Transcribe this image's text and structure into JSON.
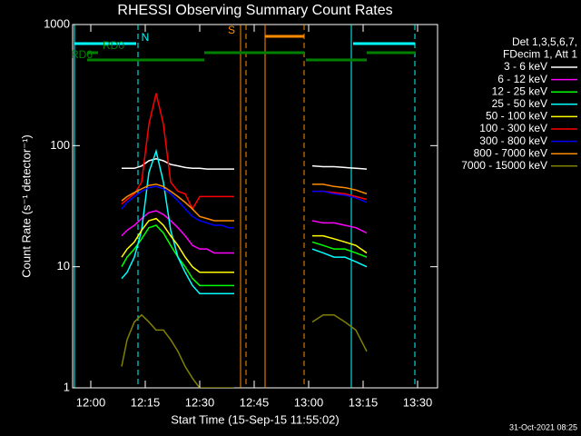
{
  "chart_data": {
    "type": "line",
    "title": "RHESSI Observing Summary Count Rates",
    "y_label": "Count Rate (s⁻¹ detector⁻¹)",
    "x_label": "Start Time (15-Sep-15 11:55:02)",
    "timestamp": "31-Oct-2021 08:25",
    "legend_header": [
      "Det 1,3,5,6,7,",
      "FDecim 1, Att 1"
    ],
    "log_y": true,
    "ylim": [
      1,
      1000
    ],
    "yticks": [
      1,
      10,
      100,
      1000
    ],
    "xlim": [
      -5,
      95.5
    ],
    "xticks": [
      {
        "value": 0,
        "label": "12:00"
      },
      {
        "value": 15,
        "label": "12:15"
      },
      {
        "value": 30,
        "label": "12:30"
      },
      {
        "value": 45,
        "label": "12:45"
      },
      {
        "value": 60,
        "label": "13:00"
      },
      {
        "value": 75,
        "label": "13:15"
      },
      {
        "value": 90,
        "label": "13:30"
      }
    ],
    "x": [
      8.5,
      10,
      12,
      14,
      16,
      18,
      20,
      22,
      24,
      26,
      28,
      30,
      32,
      34,
      36,
      38,
      39.5,
      50,
      61,
      64,
      67,
      70,
      73,
      76
    ],
    "series": [
      {
        "name": "3 - 6 keV",
        "color": "#ffffff",
        "values": [
          65,
          65,
          65,
          68,
          75,
          78,
          75,
          70,
          68,
          66,
          65,
          65,
          64,
          64,
          64,
          64,
          64,
          null,
          68,
          67,
          67,
          66,
          65,
          64
        ]
      },
      {
        "name": "6 - 12 keV",
        "color": "#ff00ff",
        "values": [
          18,
          20,
          22,
          25,
          28,
          29,
          27,
          24,
          21,
          18,
          15,
          14,
          14,
          13,
          13,
          13,
          13,
          null,
          24,
          23,
          23,
          22,
          21,
          19
        ]
      },
      {
        "name": "12 - 25 keV",
        "color": "#00ff00",
        "values": [
          10,
          12,
          14,
          17,
          21,
          22,
          19,
          15,
          12,
          10,
          8,
          7,
          7,
          7,
          7,
          7,
          7,
          null,
          16,
          15,
          14,
          14,
          13,
          12
        ]
      },
      {
        "name": "25 - 50 keV",
        "color": "#00ffff",
        "values": [
          8,
          9,
          12,
          20,
          60,
          90,
          50,
          20,
          12,
          9,
          7,
          6,
          6,
          6,
          6,
          6,
          6,
          null,
          14,
          13,
          12,
          12,
          11,
          10
        ]
      },
      {
        "name": "50 - 100 keV",
        "color": "#ffff00",
        "values": [
          12,
          14,
          16,
          20,
          24,
          25,
          22,
          18,
          15,
          12,
          10,
          9,
          9,
          9,
          9,
          9,
          9,
          null,
          18,
          18,
          17,
          16,
          15,
          13
        ]
      },
      {
        "name": "100 - 300 keV",
        "color": "#ff0000",
        "values": [
          33,
          36,
          40,
          50,
          150,
          270,
          150,
          50,
          42,
          40,
          30,
          38,
          38,
          38,
          38,
          38,
          38,
          null,
          42,
          42,
          41,
          40,
          38,
          36
        ]
      },
      {
        "name": "300 - 800 keV",
        "color": "#0000ff",
        "values": [
          30,
          34,
          38,
          42,
          45,
          46,
          44,
          40,
          35,
          30,
          26,
          24,
          23,
          22,
          22,
          21,
          21,
          null,
          42,
          42,
          40,
          39,
          37,
          34
        ]
      },
      {
        "name": "800 - 7000 keV",
        "color": "#ff8c00",
        "values": [
          35,
          38,
          41,
          44,
          47,
          48,
          46,
          42,
          38,
          34,
          30,
          26,
          25,
          24,
          24,
          24,
          24,
          null,
          48,
          48,
          46,
          45,
          43,
          40
        ]
      },
      {
        "name": "7000 - 15000 keV",
        "color": "#808000",
        "values": [
          1.5,
          2.5,
          3.5,
          4,
          3.5,
          3,
          3,
          2.5,
          2,
          1.5,
          1.2,
          1,
          1,
          1,
          1,
          1,
          1,
          null,
          3.5,
          4,
          4,
          3.5,
          3,
          2
        ]
      }
    ],
    "events": [
      {
        "x": -4.5,
        "color": "#00ffff",
        "style": "solid"
      },
      {
        "x": 13,
        "color": "#00ffff",
        "style": "dashed"
      },
      {
        "x": 41.25,
        "color": "#ff8c00",
        "style": "solid"
      },
      {
        "x": 42.75,
        "color": "#ff8c00",
        "style": "dashed"
      },
      {
        "x": 48,
        "color": "#ff8c00",
        "style": "solid"
      },
      {
        "x": 58.75,
        "color": "#ff8c00",
        "style": "dashed"
      },
      {
        "x": 71.75,
        "color": "#00ffff",
        "style": "solid"
      },
      {
        "x": 89.25,
        "color": "#00ffff",
        "style": "dashed"
      }
    ],
    "flags": [
      {
        "name": "N",
        "color": "#00ffff",
        "segments": [
          [
            -4.5,
            12.5
          ],
          [
            72.25,
            89.25
          ]
        ]
      },
      {
        "name": "S",
        "color": "#ff8c00",
        "segments": [
          [
            48,
            58.75
          ]
        ]
      },
      {
        "name": "RD0",
        "color": "#008000",
        "segments": [
          [
            -1,
            2
          ],
          [
            31.25,
            58.75
          ],
          [
            76,
            89.5
          ]
        ]
      },
      {
        "name": "RD6",
        "color": "#008000",
        "segments": [
          [
            -1,
            31.25
          ],
          [
            59.25,
            76
          ]
        ]
      }
    ]
  }
}
